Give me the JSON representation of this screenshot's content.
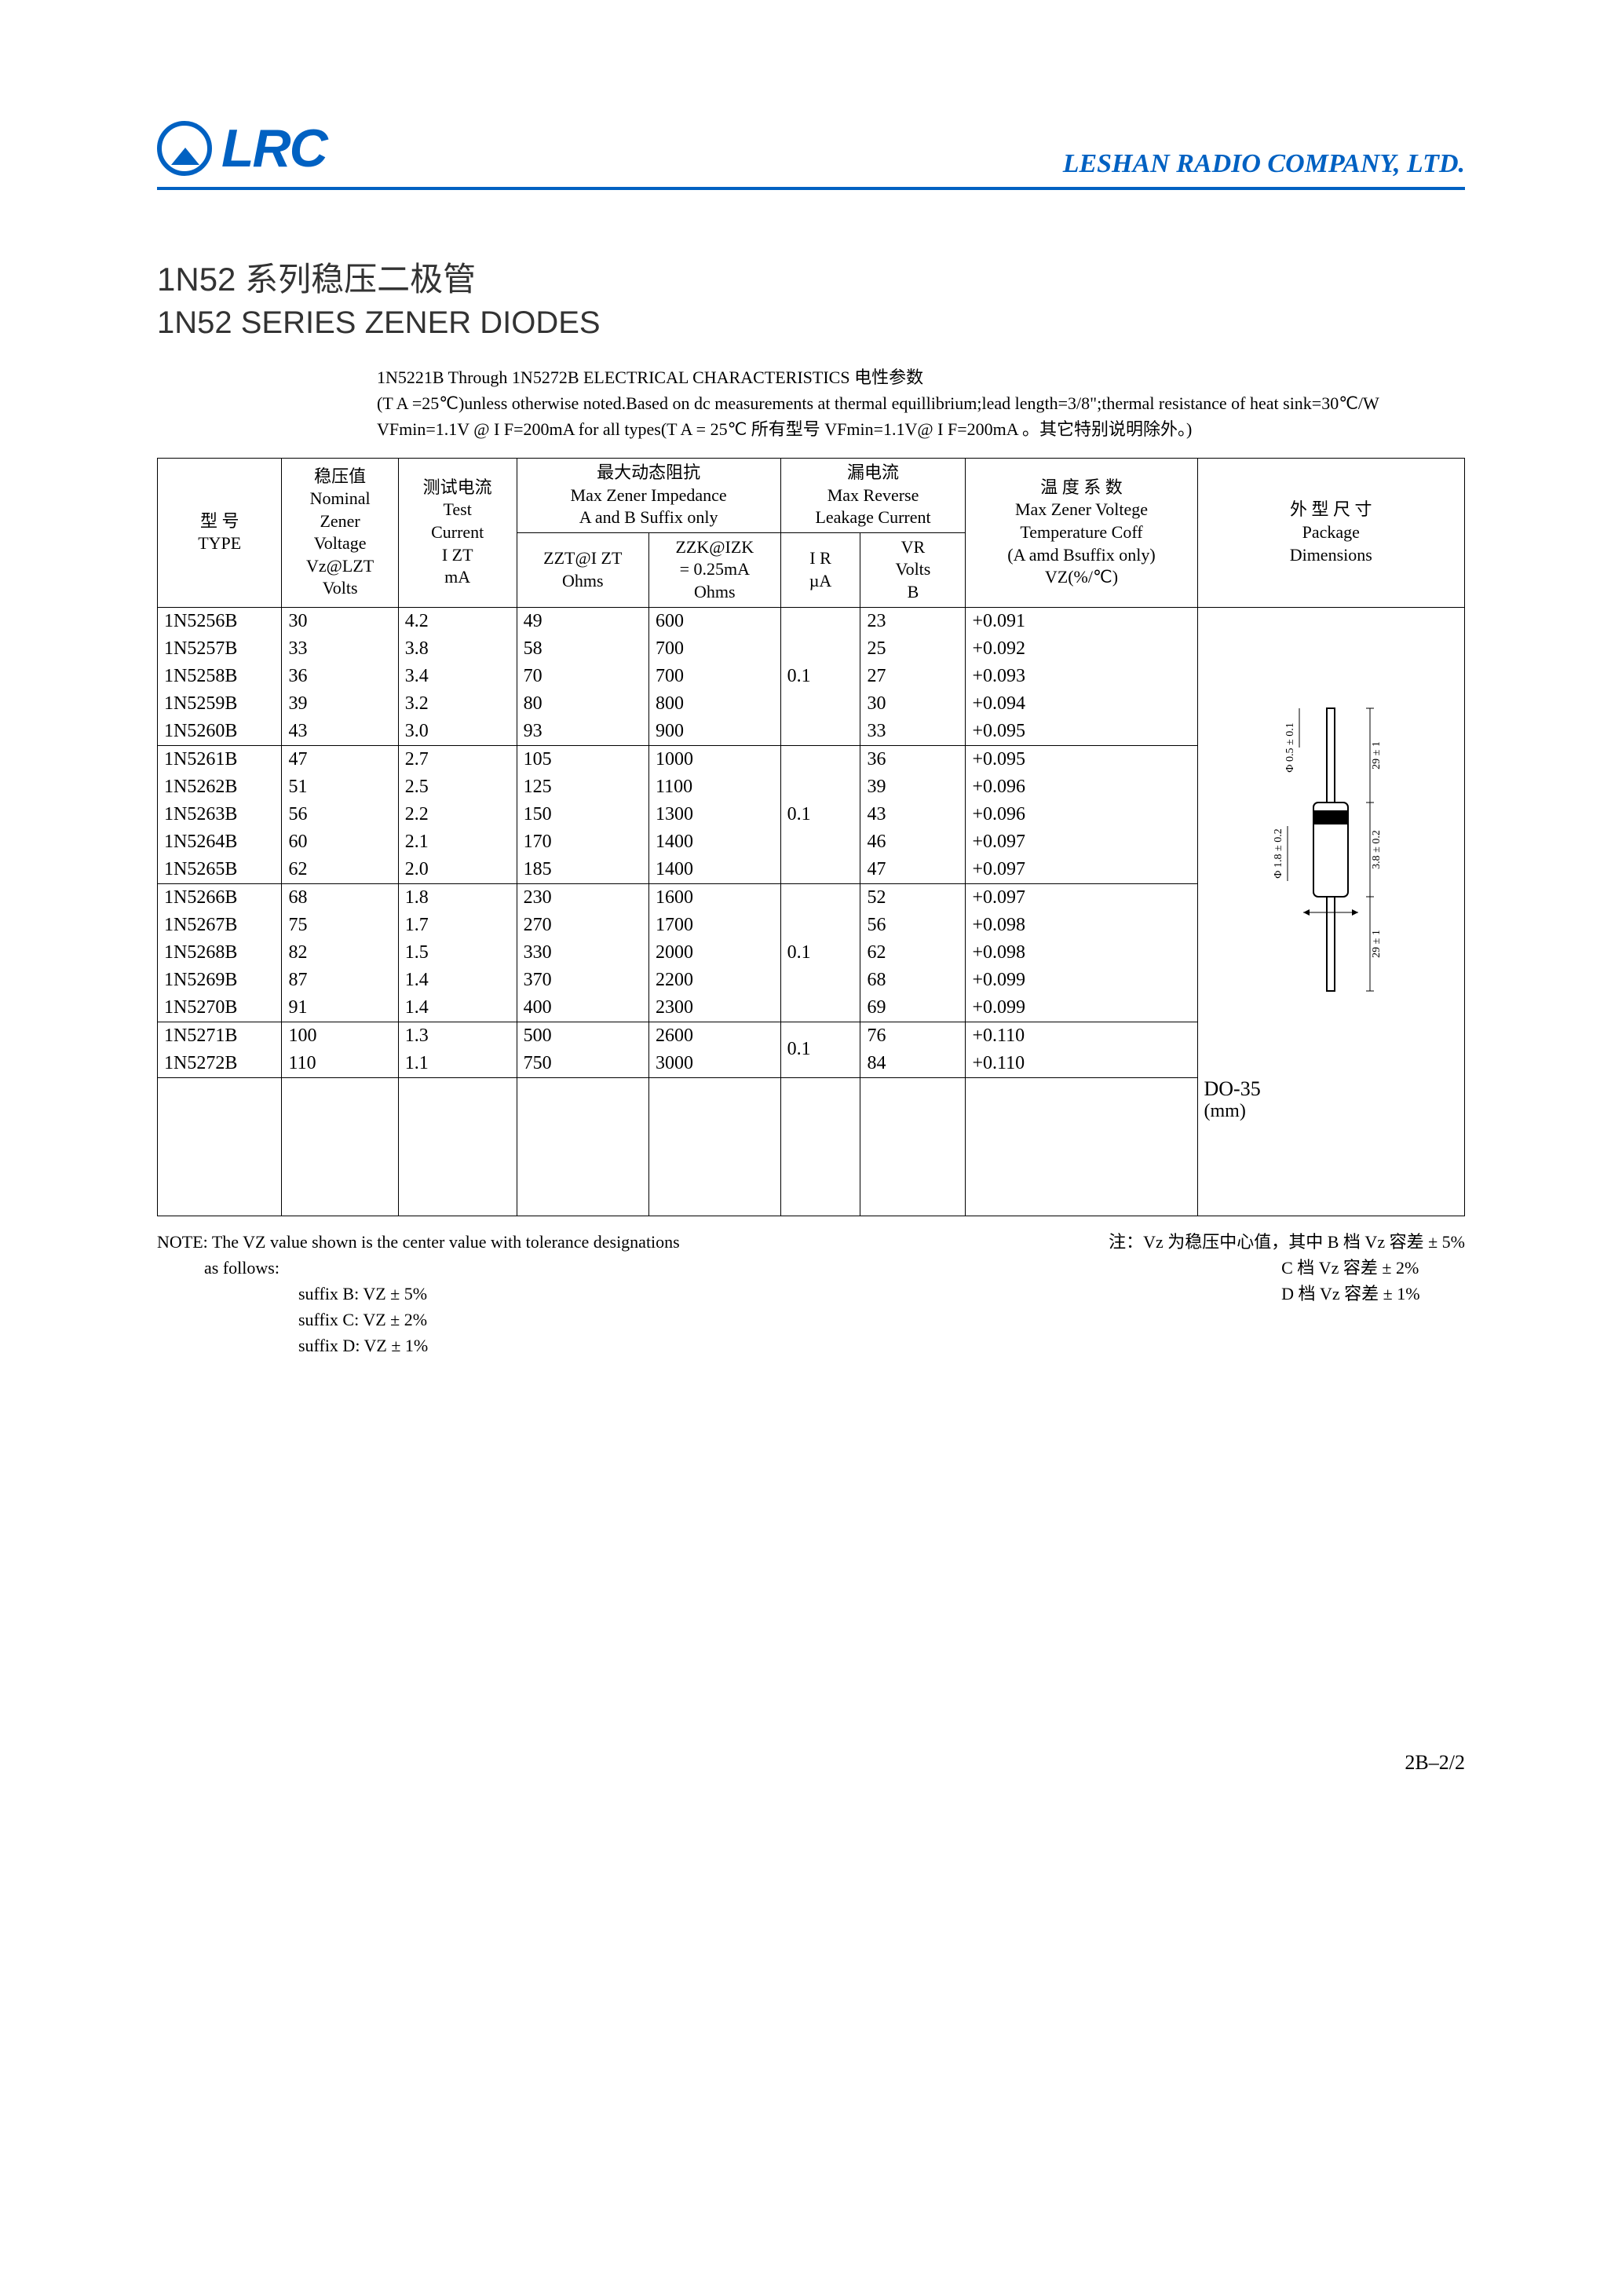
{
  "header": {
    "logo_text": "LRC",
    "company": "LESHAN RADIO COMPANY, LTD."
  },
  "titles": {
    "cn": "1N52 系列稳压二极管",
    "en": "1N52 SERIES ZENER DIODES"
  },
  "subtitle": {
    "line1": "1N5221B Through 1N5272B ELECTRICAL CHARACTERISTICS 电性参数",
    "line2": "(T A =25℃)unless otherwise noted.Based on dc measurements at thermal equillibrium;lead length=3/8\";thermal resistance of heat sink=30℃/W  VFmin=1.1V @ I F=200mA for all types(T A = 25℃ 所有型号 VFmin=1.1V@ I F=200mA 。其它特别说明除外。)"
  },
  "columns": {
    "type_cn": "型  号",
    "type_en": "TYPE",
    "vz_cn": "稳压值",
    "vz_en1": "Nominal",
    "vz_en2": "Zener",
    "vz_en3": "Voltage",
    "vz_sym": "Vz@LZT",
    "vz_unit": "Volts",
    "izt_cn": "测试电流",
    "izt_en1": "Test",
    "izt_en2": "Current",
    "izt_sym": "I ZT",
    "izt_unit": "mA",
    "imp_cn": "最大动态阻抗",
    "imp_en": "Max Zener Impedance",
    "imp_suffix": "A and B Suffix only",
    "zzt_sym": "ZZT@I ZT",
    "zzt_unit": "Ohms",
    "zzk_sym": "ZZK@IZK",
    "zzk_cond": "= 0.25mA",
    "zzk_unit": "Ohms",
    "leak_cn": "漏电流",
    "leak_en1": "Max Reverse",
    "leak_en2": "Leakage Current",
    "ir_sym": "I R",
    "ir_unit": "µA",
    "vr_sym": "VR",
    "vr_unit1": "Volts",
    "vr_unit2": "B",
    "temp_cn": "温 度 系 数",
    "temp_en": "Max Zener Voltege",
    "temp_en2": "Temperature Coff",
    "temp_suffix": "(A amd Bsuffix only)",
    "temp_sym": "VZ(%/℃)",
    "pkg_cn": "外 型 尺 寸",
    "pkg_en": "Package",
    "pkg_en2": "Dimensions"
  },
  "groups": [
    {
      "ir": "0.1",
      "rows": [
        {
          "type": "1N5256B",
          "vz": "30",
          "izt": "4.2",
          "zzt": "49",
          "zzk": "600",
          "vr": "23",
          "tc": "+0.091"
        },
        {
          "type": "1N5257B",
          "vz": "33",
          "izt": "3.8",
          "zzt": "58",
          "zzk": "700",
          "vr": "25",
          "tc": "+0.092"
        },
        {
          "type": "1N5258B",
          "vz": "36",
          "izt": "3.4",
          "zzt": "70",
          "zzk": "700",
          "vr": "27",
          "tc": "+0.093"
        },
        {
          "type": "1N5259B",
          "vz": "39",
          "izt": "3.2",
          "zzt": "80",
          "zzk": "800",
          "vr": "30",
          "tc": "+0.094"
        },
        {
          "type": "1N5260B",
          "vz": "43",
          "izt": "3.0",
          "zzt": "93",
          "zzk": "900",
          "vr": "33",
          "tc": "+0.095"
        }
      ]
    },
    {
      "ir": "0.1",
      "rows": [
        {
          "type": "1N5261B",
          "vz": "47",
          "izt": "2.7",
          "zzt": "105",
          "zzk": "1000",
          "vr": "36",
          "tc": "+0.095"
        },
        {
          "type": "1N5262B",
          "vz": "51",
          "izt": "2.5",
          "zzt": "125",
          "zzk": "1100",
          "vr": "39",
          "tc": "+0.096"
        },
        {
          "type": "1N5263B",
          "vz": "56",
          "izt": "2.2",
          "zzt": "150",
          "zzk": "1300",
          "vr": "43",
          "tc": "+0.096"
        },
        {
          "type": "1N5264B",
          "vz": "60",
          "izt": "2.1",
          "zzt": "170",
          "zzk": "1400",
          "vr": "46",
          "tc": "+0.097"
        },
        {
          "type": "1N5265B",
          "vz": "62",
          "izt": "2.0",
          "zzt": "185",
          "zzk": "1400",
          "vr": "47",
          "tc": "+0.097"
        }
      ]
    },
    {
      "ir": "0.1",
      "rows": [
        {
          "type": "1N5266B",
          "vz": "68",
          "izt": "1.8",
          "zzt": "230",
          "zzk": "1600",
          "vr": "52",
          "tc": "+0.097"
        },
        {
          "type": "1N5267B",
          "vz": "75",
          "izt": "1.7",
          "zzt": "270",
          "zzk": "1700",
          "vr": "56",
          "tc": "+0.098"
        },
        {
          "type": "1N5268B",
          "vz": "82",
          "izt": "1.5",
          "zzt": "330",
          "zzk": "2000",
          "vr": "62",
          "tc": "+0.098"
        },
        {
          "type": "1N5269B",
          "vz": "87",
          "izt": "1.4",
          "zzt": "370",
          "zzk": "2200",
          "vr": "68",
          "tc": "+0.099"
        },
        {
          "type": "1N5270B",
          "vz": "91",
          "izt": "1.4",
          "zzt": "400",
          "zzk": "2300",
          "vr": "69",
          "tc": "+0.099"
        }
      ]
    },
    {
      "ir": "0.1",
      "rows": [
        {
          "type": "1N5271B",
          "vz": "100",
          "izt": "1.3",
          "zzt": "500",
          "zzk": "2600",
          "vr": "76",
          "tc": "+0.110"
        },
        {
          "type": "1N5272B",
          "vz": "110",
          "izt": "1.1",
          "zzt": "750",
          "zzk": "3000",
          "vr": "84",
          "tc": "+0.110"
        }
      ]
    }
  ],
  "package": {
    "name": "DO-35",
    "unit": "(mm)",
    "lead_dia": "Φ 0.5 ± 0.1",
    "body_dia": "Φ 1.8 ± 0.2",
    "body_len": "3.8 ± 0.2",
    "lead_len": "29 ± 1"
  },
  "notes": {
    "left_main": "NOTE: The VZ value shown is the center value with tolerance designations",
    "left_sub": "as  follows:",
    "b": "suffix B:  VZ ± 5%",
    "c": "suffix C:  VZ ± 2%",
    "d": "suffix D:  VZ ± 1%",
    "right1": "注：Vz 为稳压中心值，其中 B 档 Vz 容差 ± 5%",
    "right2": "C 档 Vz 容差 ± 2%",
    "right3": "D 档 Vz 容差 ± 1%"
  },
  "pagenum": "2B–2/2"
}
